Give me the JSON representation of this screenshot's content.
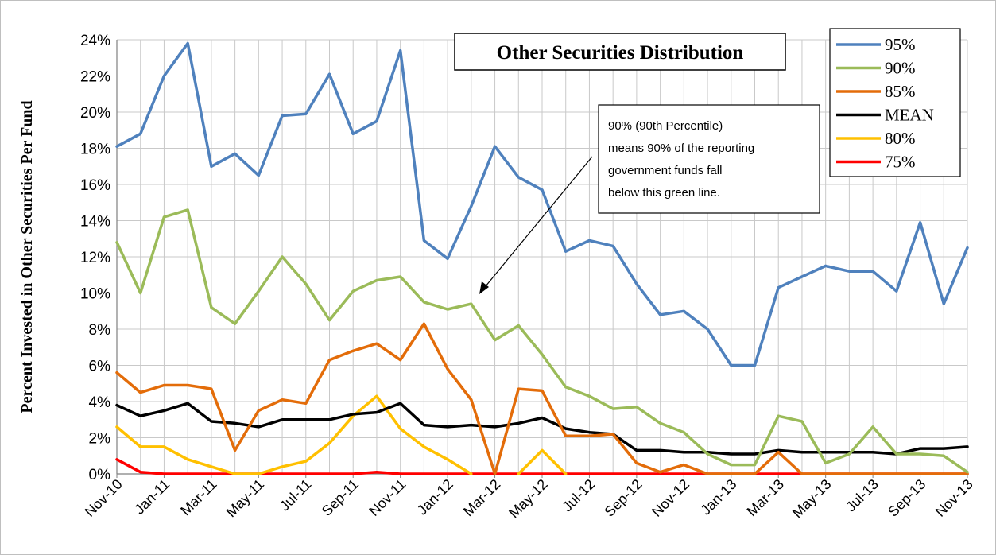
{
  "chart_data": {
    "type": "line",
    "title": "Other Securities Distribution",
    "ylabel": "Percent Invested  in Other Securities  Per Fund",
    "xlabel": "",
    "ylim": [
      0,
      24
    ],
    "y_ticks": [
      "0%",
      "2%",
      "4%",
      "6%",
      "8%",
      "10%",
      "12%",
      "14%",
      "16%",
      "18%",
      "20%",
      "22%",
      "24%"
    ],
    "x_tick_labels": [
      "Nov-10",
      "Jan-11",
      "Mar-11",
      "May-11",
      "Jul-11",
      "Sep-11",
      "Nov-11",
      "Jan-12",
      "Mar-12",
      "May-12",
      "Jul-12",
      "Sep-12",
      "Nov-12",
      "Jan-13",
      "Mar-13",
      "May-13",
      "Jul-13",
      "Sep-13",
      "Nov-13"
    ],
    "x": [
      "Nov-10",
      "Dec-10",
      "Jan-11",
      "Feb-11",
      "Mar-11",
      "Apr-11",
      "May-11",
      "Jun-11",
      "Jul-11",
      "Aug-11",
      "Sep-11",
      "Oct-11",
      "Nov-11",
      "Dec-11",
      "Jan-12",
      "Feb-12",
      "Mar-12",
      "Apr-12",
      "May-12",
      "Jun-12",
      "Jul-12",
      "Aug-12",
      "Sep-12",
      "Oct-12",
      "Nov-12",
      "Dec-12",
      "Jan-13",
      "Feb-13",
      "Mar-13",
      "Apr-13",
      "May-13",
      "Jun-13",
      "Jul-13",
      "Aug-13",
      "Sep-13",
      "Oct-13",
      "Nov-13"
    ],
    "grid": true,
    "legend_position": "top-right",
    "series": [
      {
        "name": "95%",
        "color": "#4f81bd",
        "values": [
          18.1,
          18.8,
          22.0,
          23.8,
          17.0,
          17.7,
          16.5,
          19.8,
          19.9,
          22.1,
          18.8,
          19.5,
          23.4,
          12.9,
          11.9,
          14.8,
          18.1,
          16.4,
          15.7,
          12.3,
          12.9,
          12.6,
          10.5,
          8.8,
          9.0,
          8.0,
          6.0,
          6.0,
          10.3,
          10.9,
          11.5,
          11.2,
          11.2,
          10.1,
          13.9,
          9.4,
          12.5
        ]
      },
      {
        "name": "90%",
        "color": "#9bbb59",
        "values": [
          12.8,
          10.0,
          14.2,
          14.6,
          9.2,
          8.3,
          10.1,
          12.0,
          10.5,
          8.5,
          10.1,
          10.7,
          10.9,
          9.5,
          9.1,
          9.4,
          7.4,
          8.2,
          6.6,
          4.8,
          4.3,
          3.6,
          3.7,
          2.8,
          2.3,
          1.1,
          0.5,
          0.5,
          3.2,
          2.9,
          0.6,
          1.1,
          2.6,
          1.1,
          1.1,
          1.0,
          0.1
        ]
      },
      {
        "name": "85%",
        "color": "#e36c09",
        "values": [
          5.6,
          4.5,
          4.9,
          4.9,
          4.7,
          1.3,
          3.5,
          4.1,
          3.9,
          6.3,
          6.8,
          7.2,
          6.3,
          8.3,
          5.8,
          4.1,
          0.0,
          4.7,
          4.6,
          2.1,
          2.1,
          2.2,
          0.6,
          0.1,
          0.5,
          0.0,
          0.0,
          0.0,
          1.2,
          0.0,
          0.0,
          0.0,
          0.0,
          0.0,
          0.0,
          0.0,
          0.0
        ]
      },
      {
        "name": "MEAN",
        "color": "#000000",
        "values": [
          3.8,
          3.2,
          3.5,
          3.9,
          2.9,
          2.8,
          2.6,
          3.0,
          3.0,
          3.0,
          3.3,
          3.4,
          3.9,
          2.7,
          2.6,
          2.7,
          2.6,
          2.8,
          3.1,
          2.5,
          2.3,
          2.2,
          1.3,
          1.3,
          1.2,
          1.2,
          1.1,
          1.1,
          1.3,
          1.2,
          1.2,
          1.2,
          1.2,
          1.1,
          1.4,
          1.4,
          1.5
        ]
      },
      {
        "name": "80%",
        "color": "#ffc000",
        "values": [
          2.6,
          1.5,
          1.5,
          0.8,
          0.4,
          0.0,
          0.0,
          0.4,
          0.7,
          1.7,
          3.2,
          4.3,
          2.5,
          1.5,
          0.8,
          0.0,
          null,
          0.0,
          1.3,
          0.0,
          null,
          null,
          null,
          null,
          null,
          null,
          null,
          null,
          null,
          null,
          null,
          null,
          null,
          null,
          null,
          null,
          null
        ]
      },
      {
        "name": "75%",
        "color": "#ff0000",
        "values": [
          0.8,
          0.1,
          0.0,
          0.0,
          0.0,
          0.0,
          0.0,
          0.0,
          0.0,
          0.0,
          0.0,
          0.1,
          0.0,
          0.0,
          0.0,
          0.0,
          0.0,
          0.0,
          0.0,
          0.0,
          0.0,
          0.0,
          0.0,
          0.0,
          0.0,
          0.0,
          0.0,
          0.0,
          0.0,
          0.0,
          0.0,
          0.0,
          0.0,
          0.0,
          0.0,
          0.0,
          0.0
        ]
      }
    ],
    "annotation": {
      "lines": [
        "90% (90th Percentile)",
        "means 90% of the reporting",
        "government funds fall",
        "below this green line."
      ]
    }
  }
}
